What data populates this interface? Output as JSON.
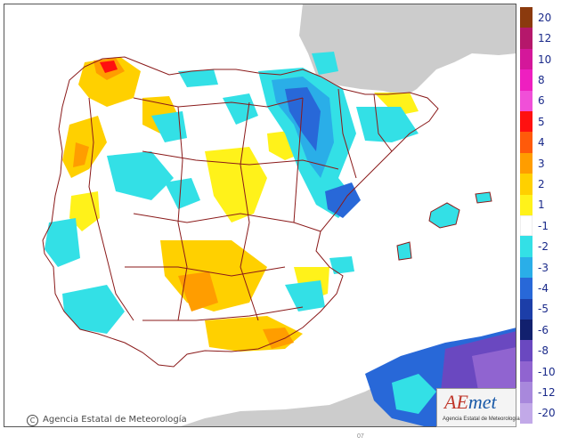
{
  "map": {
    "credit_text": "Agencia Estatal de Meteorología",
    "bottom_tick": "07"
  },
  "logo": {
    "word_a": "AE",
    "word_b": "met",
    "subtitle": "Agencia Estatal de Meteorología"
  },
  "legend": {
    "items": [
      {
        "label": "20",
        "color": "#8b3a0e"
      },
      {
        "label": "12",
        "color": "#b5176b"
      },
      {
        "label": "10",
        "color": "#d4179a"
      },
      {
        "label": "8",
        "color": "#ee1fc0"
      },
      {
        "label": "6",
        "color": "#f04fd8"
      },
      {
        "label": "5",
        "color": "#ff1010"
      },
      {
        "label": "4",
        "color": "#ff5a0a"
      },
      {
        "label": "3",
        "color": "#ff9d00"
      },
      {
        "label": "2",
        "color": "#ffd000"
      },
      {
        "label": "1",
        "color": "#fff21a"
      },
      {
        "label": "-1",
        "color": "#ffffff"
      },
      {
        "label": "-2",
        "color": "#33e0e6"
      },
      {
        "label": "-3",
        "color": "#2aaee8"
      },
      {
        "label": "-4",
        "color": "#2868d8"
      },
      {
        "label": "-5",
        "color": "#1c3ea8"
      },
      {
        "label": "-6",
        "color": "#12206e"
      },
      {
        "label": "-8",
        "color": "#6a48c0"
      },
      {
        "label": "-10",
        "color": "#9064d0"
      },
      {
        "label": "-12",
        "color": "#a888dc"
      },
      {
        "label": "-20",
        "color": "#c2a9e8"
      }
    ]
  },
  "colors": {
    "sea": "#ffffff",
    "foreign_land": "#cccccc",
    "border": "#8a1a1a"
  }
}
